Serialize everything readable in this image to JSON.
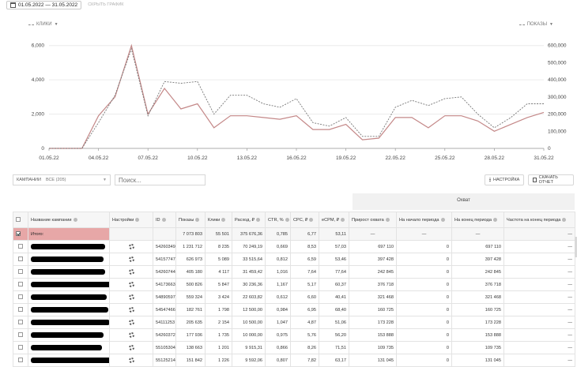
{
  "topbar": {
    "date_range": "01.05.2022 — 31.05.2022",
    "hide_chart": "СКРЫТЬ ГРАФИК"
  },
  "chart_legend": {
    "left": "КЛИКИ",
    "right": "ПОКАЗЫ"
  },
  "chart_data": {
    "type": "line",
    "x": [
      "01.05.22",
      "02.05.22",
      "03.05.22",
      "04.05.22",
      "05.05.22",
      "06.05.22",
      "07.05.22",
      "08.05.22",
      "09.05.22",
      "10.05.22",
      "11.05.22",
      "12.05.22",
      "13.05.22",
      "14.05.22",
      "15.05.22",
      "16.05.22",
      "17.05.22",
      "18.05.22",
      "19.05.22",
      "20.05.22",
      "21.05.22",
      "22.05.22",
      "23.05.22",
      "24.05.22",
      "25.05.22",
      "26.05.22",
      "27.05.22",
      "28.05.22",
      "29.05.22",
      "30.05.22",
      "31.05.22"
    ],
    "x_tick_labels": [
      "01.05.22",
      "04.05.22",
      "07.05.22",
      "10.05.22",
      "13.05.22",
      "16.05.22",
      "19.05.22",
      "22.05.22",
      "25.05.22",
      "28.05.22",
      "31.05.22"
    ],
    "series": [
      {
        "name": "Клики",
        "axis": "left",
        "style": "solid",
        "color": "#c48888",
        "values": [
          0,
          0,
          0,
          1900,
          3000,
          6000,
          2000,
          3500,
          2300,
          2600,
          1200,
          1900,
          1900,
          1800,
          1700,
          1900,
          1100,
          1100,
          1400,
          500,
          600,
          1800,
          1800,
          1200,
          1900,
          1900,
          1600,
          1000,
          1400,
          1800,
          2100
        ]
      },
      {
        "name": "Показы",
        "axis": "right",
        "style": "dashed",
        "color": "#777777",
        "values": [
          0,
          0,
          0,
          150000,
          310000,
          580000,
          190000,
          390000,
          380000,
          390000,
          200000,
          310000,
          310000,
          260000,
          240000,
          290000,
          150000,
          130000,
          180000,
          70000,
          70000,
          240000,
          280000,
          250000,
          290000,
          300000,
          200000,
          120000,
          180000,
          260000,
          260000
        ]
      }
    ],
    "y_left": {
      "ticks": [
        "0",
        "2,000",
        "4,000",
        "6,000"
      ],
      "lim": [
        0,
        6400
      ]
    },
    "y_right": {
      "ticks": [
        "0",
        "100,000",
        "200,000",
        "300,000",
        "400,000",
        "500,000",
        "600,000"
      ],
      "lim": [
        0,
        640000
      ]
    },
    "grid": true
  },
  "toolbar": {
    "campaigns_label": "КАМПАНИИ",
    "campaigns_value": "ВСЕ (205)",
    "search_placeholder": "Поиск...",
    "settings_button": "НАСТРОЙКА",
    "report_button": "СКАЧАТЬ ОТЧЕТ"
  },
  "table": {
    "coverage_group": "Охват",
    "headers": {
      "name": "Название кампании",
      "settings": "Настройки",
      "id": "ID",
      "impressions": "Показы",
      "clicks": "Клики",
      "spend": "Расход, ₽",
      "ctr": "CTR, %",
      "cpc": "CPC, ₽",
      "ecpm": "eCPM, ₽",
      "reach_growth": "Прирост охвата",
      "period_start": "На начало периода",
      "period_end": "На конец периода",
      "frequency": "Частота на конец периода"
    },
    "total": {
      "label": "Итого:",
      "impressions": "7 073 803",
      "clicks": "55 501",
      "spend": "375 676,36",
      "ctr": "0,785",
      "cpc": "6,77",
      "ecpm": "53,11",
      "reach_growth": "—",
      "period_start": "—",
      "period_end": "—",
      "frequency": "—"
    },
    "rows": [
      {
        "id": "54260349",
        "impressions": "1 231 712",
        "clicks": "8 235",
        "spend": "70 249,19",
        "ctr": "0,669",
        "cpc": "8,53",
        "ecpm": "57,03",
        "reach_growth": "697 110",
        "period_start": "0",
        "period_end": "697 110",
        "frequency": "—"
      },
      {
        "id": "54157747",
        "impressions": "626 973",
        "clicks": "5 089",
        "spend": "33 515,64",
        "ctr": "0,812",
        "cpc": "6,59",
        "ecpm": "53,46",
        "reach_growth": "397 428",
        "period_start": "0",
        "period_end": "397 428",
        "frequency": "—"
      },
      {
        "id": "54260744",
        "impressions": "405 180",
        "clicks": "4 117",
        "spend": "31 459,42",
        "ctr": "1,016",
        "cpc": "7,64",
        "ecpm": "77,64",
        "reach_growth": "242 845",
        "period_start": "0",
        "period_end": "242 845",
        "frequency": "—"
      },
      {
        "id": "54173663",
        "impressions": "500 826",
        "clicks": "5 847",
        "spend": "30 236,36",
        "ctr": "1,167",
        "cpc": "5,17",
        "ecpm": "60,37",
        "reach_growth": "376 718",
        "period_start": "0",
        "period_end": "376 718",
        "frequency": "—"
      },
      {
        "id": "54890597",
        "impressions": "559 324",
        "clicks": "3 424",
        "spend": "22 603,82",
        "ctr": "0,612",
        "cpc": "6,60",
        "ecpm": "40,41",
        "reach_growth": "321 468",
        "period_start": "0",
        "period_end": "321 468",
        "frequency": "—"
      },
      {
        "id": "54547466",
        "impressions": "182 761",
        "clicks": "1 798",
        "spend": "12 500,00",
        "ctr": "0,984",
        "cpc": "6,95",
        "ecpm": "68,40",
        "reach_growth": "160 725",
        "period_start": "0",
        "period_end": "160 725",
        "frequency": "—"
      },
      {
        "id": "54111253",
        "impressions": "205 635",
        "clicks": "2 154",
        "spend": "10 500,00",
        "ctr": "1,047",
        "cpc": "4,87",
        "ecpm": "51,06",
        "reach_growth": "173 228",
        "period_start": "0",
        "period_end": "173 228",
        "frequency": "—"
      },
      {
        "id": "54260372",
        "impressions": "177 936",
        "clicks": "1 735",
        "spend": "10 000,00",
        "ctr": "0,975",
        "cpc": "5,76",
        "ecpm": "56,20",
        "reach_growth": "153 888",
        "period_start": "0",
        "period_end": "153 888",
        "frequency": "—"
      },
      {
        "id": "55105304",
        "impressions": "138 663",
        "clicks": "1 201",
        "spend": "9 915,31",
        "ctr": "0,866",
        "cpc": "8,26",
        "ecpm": "71,51",
        "reach_growth": "109 735",
        "period_start": "0",
        "period_end": "109 735",
        "frequency": "—"
      },
      {
        "id": "55125214",
        "impressions": "151 842",
        "clicks": "1 226",
        "spend": "9 592,06",
        "ctr": "0,807",
        "cpc": "7,82",
        "ecpm": "63,17",
        "reach_growth": "131 045",
        "period_start": "0",
        "period_end": "131 045",
        "frequency": "—"
      }
    ]
  }
}
